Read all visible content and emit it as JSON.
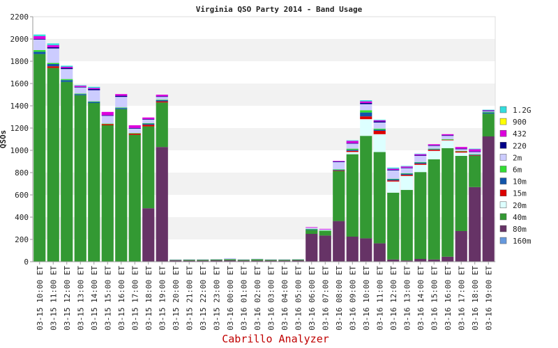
{
  "footer": "Cabrillo Analyzer",
  "chart_data": {
    "type": "bar",
    "stacked": true,
    "title": "Virginia QSO Party 2014 - Band Usage",
    "ylabel": "QSOs",
    "xlabel": "",
    "ylim": [
      0,
      2200
    ],
    "yticks": [
      0,
      200,
      400,
      600,
      800,
      1000,
      1200,
      1400,
      1600,
      1800,
      2000,
      2200
    ],
    "grid": "horizontal bands",
    "legend_position": "right",
    "categories": [
      "03-15 10:00 ET",
      "03-15 11:00 ET",
      "03-15 12:00 ET",
      "03-15 13:00 ET",
      "03-15 14:00 ET",
      "03-15 15:00 ET",
      "03-15 16:00 ET",
      "03-15 17:00 ET",
      "03-15 18:00 ET",
      "03-15 19:00 ET",
      "03-15 20:00 ET",
      "03-15 21:00 ET",
      "03-15 22:00 ET",
      "03-15 23:00 ET",
      "03-16 00:00 ET",
      "03-16 01:00 ET",
      "03-16 02:00 ET",
      "03-16 03:00 ET",
      "03-16 04:00 ET",
      "03-16 05:00 ET",
      "03-16 06:00 ET",
      "03-16 07:00 ET",
      "03-16 08:00 ET",
      "03-16 09:00 ET",
      "03-16 10:00 ET",
      "03-16 11:00 ET",
      "03-16 12:00 ET",
      "03-16 13:00 ET",
      "03-16 14:00 ET",
      "03-16 15:00 ET",
      "03-16 16:00 ET",
      "03-16 17:00 ET",
      "03-16 18:00 ET",
      "03-16 19:00 ET"
    ],
    "series": [
      {
        "name": "160m",
        "color": "#6699dd",
        "values": [
          0,
          0,
          0,
          0,
          0,
          0,
          0,
          0,
          0,
          0,
          0,
          0,
          0,
          0,
          0,
          0,
          0,
          0,
          0,
          0,
          0,
          0,
          0,
          0,
          0,
          0,
          0,
          0,
          0,
          0,
          0,
          0,
          0,
          0
        ]
      },
      {
        "name": "80m",
        "color": "#663366",
        "values": [
          0,
          0,
          0,
          0,
          0,
          0,
          0,
          0,
          480,
          1030,
          12,
          10,
          10,
          12,
          12,
          10,
          10,
          10,
          10,
          12,
          250,
          235,
          365,
          225,
          210,
          165,
          20,
          10,
          25,
          20,
          45,
          275,
          670,
          1125
        ]
      },
      {
        "name": "40m",
        "color": "#339933",
        "values": [
          1865,
          1740,
          1615,
          1495,
          1425,
          1225,
          1370,
          1140,
          735,
          400,
          5,
          8,
          8,
          8,
          10,
          8,
          12,
          8,
          8,
          8,
          35,
          40,
          450,
          740,
          920,
          820,
          600,
          635,
          780,
          900,
          975,
          675,
          280,
          205
        ]
      },
      {
        "name": "20m",
        "color": "#ddffff",
        "values": [
          0,
          0,
          0,
          0,
          0,
          0,
          0,
          0,
          0,
          0,
          0,
          0,
          0,
          0,
          0,
          0,
          0,
          0,
          0,
          0,
          0,
          0,
          0,
          20,
          150,
          160,
          100,
          125,
          65,
          75,
          70,
          30,
          0,
          0
        ]
      },
      {
        "name": "15m",
        "color": "#dd0000",
        "values": [
          0,
          15,
          0,
          0,
          0,
          10,
          0,
          10,
          15,
          10,
          0,
          0,
          0,
          0,
          0,
          0,
          0,
          0,
          0,
          0,
          0,
          0,
          5,
          10,
          25,
          30,
          10,
          10,
          10,
          10,
          5,
          10,
          5,
          0
        ]
      },
      {
        "name": "10m",
        "color": "#1155aa",
        "values": [
          20,
          20,
          15,
          10,
          10,
          0,
          10,
          0,
          10,
          10,
          0,
          0,
          0,
          0,
          0,
          0,
          0,
          0,
          0,
          0,
          5,
          0,
          5,
          10,
          35,
          10,
          10,
          10,
          10,
          5,
          0,
          0,
          5,
          10
        ]
      },
      {
        "name": "6m",
        "color": "#33dd33",
        "values": [
          15,
          10,
          10,
          5,
          5,
          5,
          5,
          5,
          5,
          5,
          0,
          0,
          0,
          0,
          0,
          0,
          0,
          0,
          0,
          0,
          5,
          5,
          5,
          10,
          20,
          10,
          5,
          5,
          5,
          5,
          5,
          5,
          5,
          5
        ]
      },
      {
        "name": "2m",
        "color": "#ccccff",
        "values": [
          95,
          130,
          90,
          55,
          100,
          70,
          95,
          40,
          30,
          25,
          5,
          5,
          5,
          5,
          10,
          5,
          5,
          5,
          5,
          5,
          10,
          10,
          65,
          45,
          55,
          55,
          75,
          45,
          55,
          25,
          30,
          15,
          20,
          5
        ]
      },
      {
        "name": "220",
        "color": "#000088",
        "values": [
          5,
          10,
          10,
          5,
          10,
          5,
          10,
          5,
          5,
          5,
          0,
          0,
          0,
          0,
          0,
          0,
          0,
          0,
          0,
          0,
          0,
          0,
          5,
          5,
          10,
          10,
          5,
          5,
          5,
          5,
          5,
          5,
          5,
          5
        ]
      },
      {
        "name": "432",
        "color": "#dd00dd",
        "values": [
          25,
          20,
          10,
          10,
          10,
          30,
          15,
          25,
          15,
          15,
          0,
          0,
          0,
          0,
          0,
          0,
          0,
          0,
          0,
          0,
          5,
          5,
          5,
          20,
          15,
          10,
          10,
          10,
          10,
          10,
          10,
          15,
          20,
          5
        ]
      },
      {
        "name": "900",
        "color": "#ffff00",
        "values": [
          0,
          0,
          0,
          0,
          0,
          0,
          0,
          0,
          0,
          0,
          0,
          0,
          0,
          0,
          0,
          0,
          0,
          0,
          0,
          0,
          0,
          0,
          0,
          0,
          0,
          0,
          0,
          0,
          0,
          0,
          0,
          0,
          0,
          0
        ]
      },
      {
        "name": "1.2G",
        "color": "#33dddd",
        "values": [
          15,
          15,
          10,
          5,
          10,
          0,
          0,
          0,
          0,
          0,
          0,
          0,
          0,
          0,
          0,
          0,
          0,
          0,
          0,
          0,
          0,
          0,
          0,
          5,
          10,
          5,
          10,
          5,
          5,
          0,
          0,
          0,
          5,
          5
        ]
      }
    ]
  }
}
